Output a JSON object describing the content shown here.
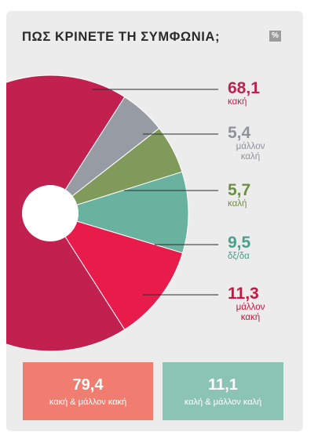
{
  "header": {
    "title": "ΠΩΣ ΚΡΙΝΕΤΕ ΤΗ ΣΥΜΦΩΝΙΑ;",
    "unit_badge": "%"
  },
  "chart_data": {
    "type": "pie",
    "title": "ΠΩΣ ΚΡΙΝΕΤΕ ΤΗ ΣΥΜΦΩΝΙΑ;",
    "unit": "%",
    "slices": [
      {
        "value": 68.1,
        "value_label": "68,1",
        "label": "κακή",
        "color": "#c2204e",
        "label_color": "#c2204e"
      },
      {
        "value": 5.4,
        "value_label": "5,4",
        "label": "μάλλον καλή",
        "color": "#979ca4",
        "label_color": "#8e939b"
      },
      {
        "value": 5.7,
        "value_label": "5,7",
        "label": "καλή",
        "color": "#809a5c",
        "label_color": "#6d8f45"
      },
      {
        "value": 9.5,
        "value_label": "9,5",
        "label": "δξ/δα",
        "color": "#68b29f",
        "label_color": "#46a08b"
      },
      {
        "value": 11.3,
        "value_label": "11,3",
        "label": "μάλλον κακή",
        "color": "#e81b4b",
        "label_color": "#c8173e"
      }
    ]
  },
  "summary": [
    {
      "value": "79,4",
      "label": "κακή & μάλλον κακή",
      "color": "#f07d70"
    },
    {
      "value": "11,1",
      "label": "καλή & μάλλον καλή",
      "color": "#8cc4b3"
    }
  ]
}
